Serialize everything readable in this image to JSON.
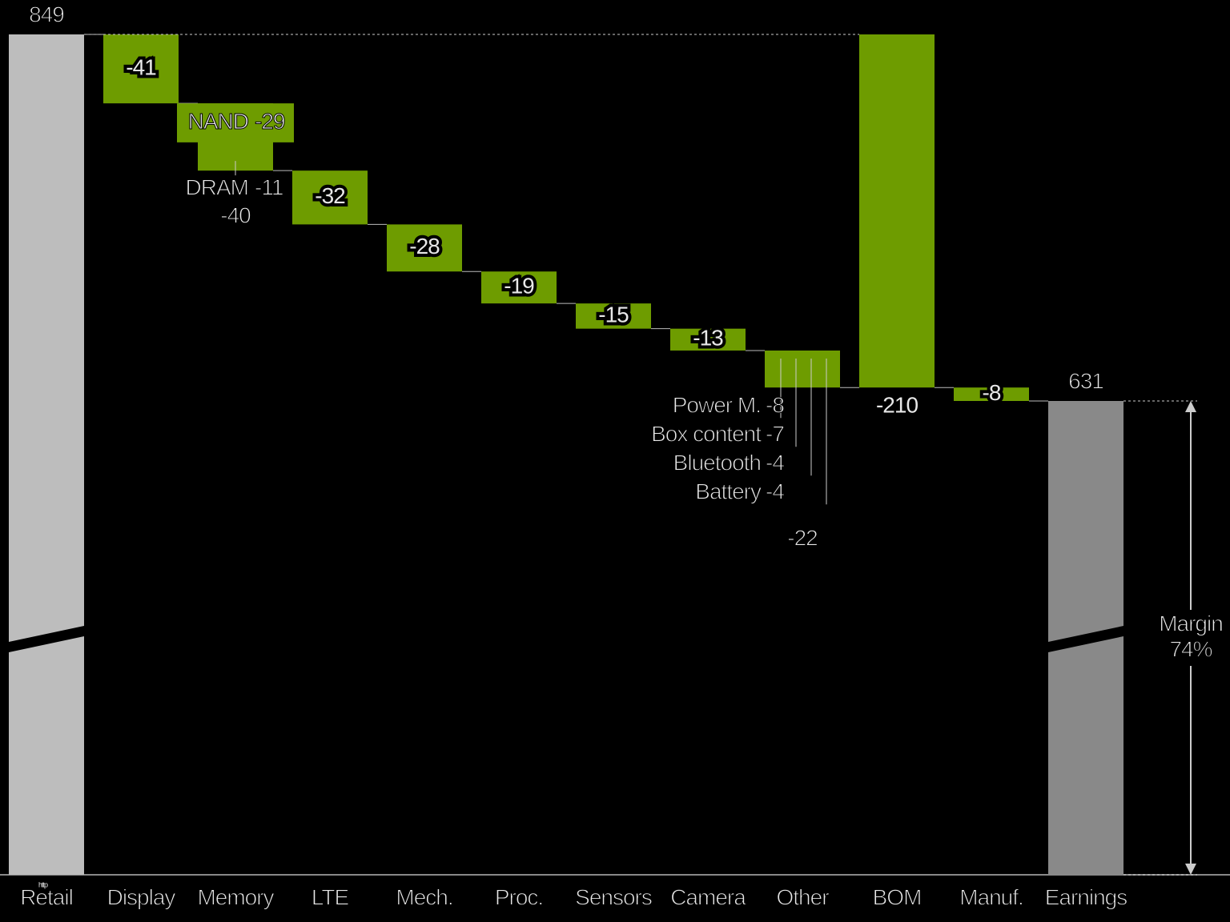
{
  "chart_data": {
    "type": "waterfall",
    "categories": [
      "Retail",
      "Display",
      "Memory",
      "LTE",
      "Mech.",
      "Proc.",
      "Sensors",
      "Camera",
      "Other",
      "BOM",
      "Manuf.",
      "Earnings"
    ],
    "values": [
      849,
      -41,
      -40,
      -32,
      -28,
      -19,
      -15,
      -13,
      -22,
      -210,
      -8,
      631
    ],
    "kinds": [
      "total",
      "delta",
      "delta",
      "delta",
      "delta",
      "delta",
      "delta",
      "delta",
      "delta",
      "subtotal",
      "delta",
      "total"
    ],
    "colors": {
      "start": "#bdbdbd",
      "delta": "#6e9c00",
      "end": "#898989"
    },
    "breakdowns": {
      "Memory": [
        {
          "name": "NAND",
          "value": -29
        },
        {
          "name": "DRAM",
          "value": -11
        }
      ],
      "Other": [
        {
          "name": "Power M.",
          "value": -8
        },
        {
          "name": "Box content",
          "value": -7
        },
        {
          "name": "Bluetooth",
          "value": -4
        },
        {
          "name": "Battery",
          "value": -4
        }
      ]
    },
    "margin": {
      "label": "Margin",
      "value": 74,
      "value_label": "74%"
    },
    "note": "http"
  }
}
